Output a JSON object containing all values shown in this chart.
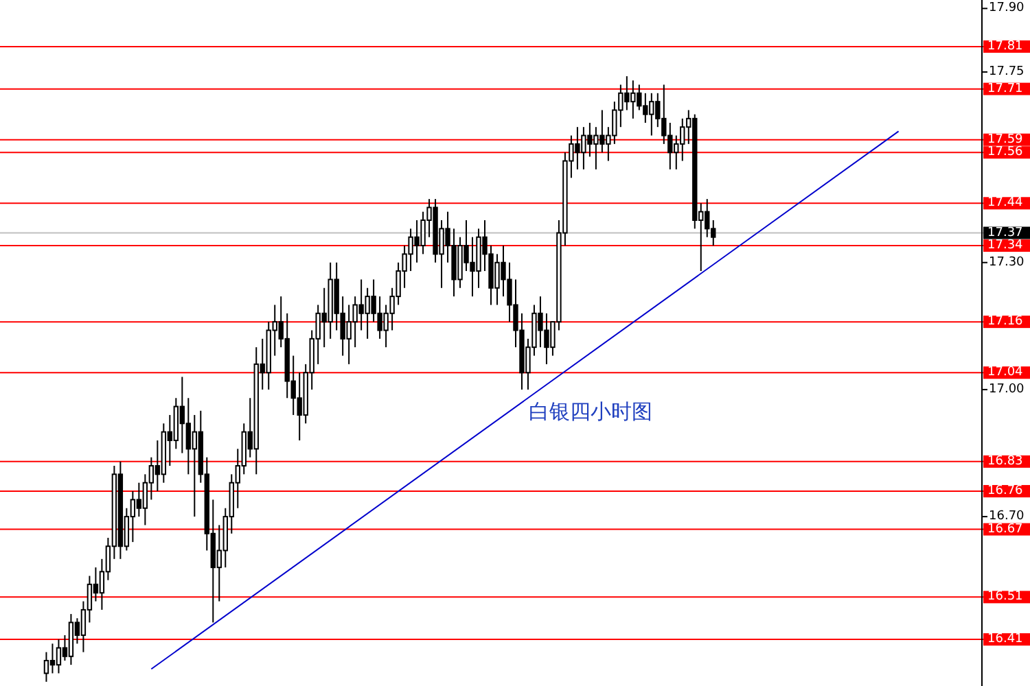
{
  "chart_data": {
    "type": "candlestick",
    "title": "白银四小时图",
    "categories": [
      null,
      null,
      null,
      null,
      null,
      null,
      null,
      null,
      null,
      null,
      null,
      null,
      null,
      null,
      null,
      null,
      null,
      null,
      null,
      null,
      null,
      null,
      null,
      null,
      null,
      null,
      null,
      null,
      null,
      null,
      null,
      null,
      null,
      null,
      null,
      null,
      null,
      null,
      null,
      null,
      null,
      null,
      null,
      null,
      null,
      null,
      null,
      null,
      null,
      null,
      null,
      null,
      null,
      null,
      null,
      null,
      null,
      null,
      null,
      null,
      null,
      null,
      null,
      null,
      null,
      null,
      null,
      null,
      null,
      null,
      null,
      null,
      null,
      null,
      null,
      null,
      null,
      null,
      null,
      null,
      null,
      null,
      null,
      null,
      null,
      null,
      null,
      null,
      null,
      null,
      null,
      null,
      null,
      null,
      null,
      null,
      null,
      null,
      null,
      null,
      null,
      null,
      null,
      null,
      null,
      null,
      null,
      null,
      null,
      null,
      null,
      null,
      null,
      null,
      null,
      null,
      null,
      null,
      null,
      null,
      null,
      null,
      null,
      null,
      null,
      null,
      null,
      null,
      null,
      null,
      null,
      null,
      null,
      null,
      null,
      null,
      null,
      null,
      null,
      null,
      null,
      null,
      null,
      null,
      null,
      null,
      null,
      null,
      null,
      null,
      null,
      null,
      null,
      null,
      null,
      null,
      null,
      null,
      null
    ],
    "ohlc": [
      null,
      null,
      null,
      null,
      null,
      null,
      null,
      [
        16.33,
        16.38,
        16.31,
        16.36
      ],
      [
        16.36,
        16.4,
        16.33,
        16.35
      ],
      [
        16.35,
        16.41,
        16.33,
        16.39
      ],
      [
        16.39,
        16.42,
        16.36,
        16.37
      ],
      [
        16.37,
        16.47,
        16.35,
        16.45
      ],
      [
        16.45,
        16.46,
        16.4,
        16.42
      ],
      [
        16.42,
        16.5,
        16.38,
        16.48
      ],
      [
        16.48,
        16.56,
        16.45,
        16.54
      ],
      [
        16.54,
        16.58,
        16.5,
        16.52
      ],
      [
        16.52,
        16.6,
        16.48,
        16.57
      ],
      [
        16.57,
        16.65,
        16.55,
        16.63
      ],
      [
        16.63,
        16.82,
        16.6,
        16.8
      ],
      [
        16.8,
        16.83,
        16.6,
        16.63
      ],
      [
        16.63,
        16.72,
        16.62,
        16.7
      ],
      [
        16.7,
        16.76,
        16.64,
        16.74
      ],
      [
        16.74,
        16.78,
        16.7,
        16.72
      ],
      [
        16.72,
        16.8,
        16.68,
        16.78
      ],
      [
        16.78,
        16.84,
        16.74,
        16.82
      ],
      [
        16.82,
        16.88,
        16.76,
        16.8
      ],
      [
        16.8,
        16.92,
        16.78,
        16.9
      ],
      [
        16.9,
        16.94,
        16.82,
        16.88
      ],
      [
        16.88,
        16.98,
        16.86,
        16.96
      ],
      [
        16.96,
        17.03,
        16.85,
        16.92
      ],
      [
        16.92,
        16.98,
        16.8,
        16.86
      ],
      [
        16.86,
        16.94,
        16.7,
        16.9
      ],
      [
        16.9,
        16.95,
        16.78,
        16.8
      ],
      [
        16.8,
        16.84,
        16.62,
        16.66
      ],
      [
        16.66,
        16.74,
        16.45,
        16.58
      ],
      [
        16.58,
        16.68,
        16.5,
        16.62
      ],
      [
        16.62,
        16.72,
        16.58,
        16.7
      ],
      [
        16.7,
        16.8,
        16.66,
        16.78
      ],
      [
        16.78,
        16.86,
        16.72,
        16.82
      ],
      [
        16.82,
        16.92,
        16.8,
        16.9
      ],
      [
        16.9,
        16.98,
        16.84,
        16.86
      ],
      [
        16.86,
        17.1,
        16.8,
        17.06
      ],
      [
        17.06,
        17.12,
        17.0,
        17.04
      ],
      [
        17.04,
        17.16,
        17.0,
        17.14
      ],
      [
        17.14,
        17.2,
        17.08,
        17.16
      ],
      [
        17.16,
        17.22,
        17.1,
        17.12
      ],
      [
        17.12,
        17.18,
        16.98,
        17.02
      ],
      [
        17.02,
        17.08,
        16.94,
        16.98
      ],
      [
        16.98,
        17.04,
        16.88,
        16.94
      ],
      [
        16.94,
        17.06,
        16.92,
        17.04
      ],
      [
        17.04,
        17.14,
        17.0,
        17.12
      ],
      [
        17.12,
        17.2,
        17.06,
        17.18
      ],
      [
        17.18,
        17.24,
        17.1,
        17.16
      ],
      [
        17.16,
        17.3,
        17.12,
        17.26
      ],
      [
        17.26,
        17.3,
        17.14,
        17.18
      ],
      [
        17.18,
        17.22,
        17.08,
        17.12
      ],
      [
        17.12,
        17.2,
        17.06,
        17.16
      ],
      [
        17.16,
        17.22,
        17.1,
        17.2
      ],
      [
        17.2,
        17.26,
        17.14,
        17.18
      ],
      [
        17.18,
        17.24,
        17.12,
        17.22
      ],
      [
        17.22,
        17.26,
        17.16,
        17.18
      ],
      [
        17.18,
        17.22,
        17.12,
        17.14
      ],
      [
        17.14,
        17.2,
        17.1,
        17.18
      ],
      [
        17.18,
        17.24,
        17.14,
        17.22
      ],
      [
        17.22,
        17.3,
        17.2,
        17.28
      ],
      [
        17.28,
        17.34,
        17.24,
        17.32
      ],
      [
        17.32,
        17.38,
        17.28,
        17.36
      ],
      [
        17.36,
        17.4,
        17.3,
        17.34
      ],
      [
        17.34,
        17.42,
        17.32,
        17.4
      ],
      [
        17.4,
        17.45,
        17.36,
        17.43
      ],
      [
        17.43,
        17.45,
        17.3,
        17.32
      ],
      [
        17.32,
        17.4,
        17.24,
        17.38
      ],
      [
        17.38,
        17.42,
        17.3,
        17.34
      ],
      [
        17.34,
        17.38,
        17.22,
        17.26
      ],
      [
        17.26,
        17.36,
        17.24,
        17.34
      ],
      [
        17.34,
        17.4,
        17.28,
        17.3
      ],
      [
        17.3,
        17.36,
        17.22,
        17.28
      ],
      [
        17.28,
        17.38,
        17.24,
        17.36
      ],
      [
        17.36,
        17.4,
        17.28,
        17.32
      ],
      [
        17.32,
        17.34,
        17.2,
        17.24
      ],
      [
        17.24,
        17.32,
        17.2,
        17.3
      ],
      [
        17.3,
        17.34,
        17.22,
        17.26
      ],
      [
        17.26,
        17.3,
        17.16,
        17.2
      ],
      [
        17.2,
        17.26,
        17.1,
        17.14
      ],
      [
        17.14,
        17.18,
        17.0,
        17.04
      ],
      [
        17.04,
        17.12,
        17.0,
        17.1
      ],
      [
        17.1,
        17.2,
        17.08,
        17.18
      ],
      [
        17.18,
        17.22,
        17.1,
        17.14
      ],
      [
        17.14,
        17.18,
        17.06,
        17.1
      ],
      [
        17.1,
        17.16,
        17.08,
        17.16
      ],
      [
        17.16,
        17.4,
        17.14,
        17.37
      ],
      [
        17.37,
        17.56,
        17.34,
        17.54
      ],
      [
        17.54,
        17.6,
        17.5,
        17.58
      ],
      [
        17.58,
        17.62,
        17.52,
        17.56
      ],
      [
        17.56,
        17.62,
        17.52,
        17.6
      ],
      [
        17.6,
        17.63,
        17.55,
        17.58
      ],
      [
        17.58,
        17.62,
        17.52,
        17.6
      ],
      [
        17.6,
        17.66,
        17.56,
        17.58
      ],
      [
        17.58,
        17.62,
        17.54,
        17.6
      ],
      [
        17.6,
        17.68,
        17.58,
        17.66
      ],
      [
        17.66,
        17.72,
        17.62,
        17.7
      ],
      [
        17.7,
        17.74,
        17.66,
        17.68
      ],
      [
        17.68,
        17.73,
        17.64,
        17.7
      ],
      [
        17.7,
        17.72,
        17.66,
        17.67
      ],
      [
        17.67,
        17.7,
        17.63,
        17.65
      ],
      [
        17.65,
        17.7,
        17.6,
        17.68
      ],
      [
        17.68,
        17.7,
        17.62,
        17.64
      ],
      [
        17.64,
        17.72,
        17.58,
        17.6
      ],
      [
        17.6,
        17.63,
        17.52,
        17.56
      ],
      [
        17.56,
        17.6,
        17.52,
        17.58
      ],
      [
        17.58,
        17.64,
        17.54,
        17.62
      ],
      [
        17.62,
        17.66,
        17.58,
        17.64
      ],
      [
        17.64,
        17.65,
        17.38,
        17.4
      ],
      [
        17.4,
        17.44,
        17.28,
        17.42
      ],
      [
        17.42,
        17.45,
        17.36,
        17.38
      ],
      [
        17.38,
        17.4,
        17.34,
        17.36
      ],
      null,
      null,
      null,
      null,
      null,
      null,
      null,
      null,
      null,
      null,
      null,
      null,
      null,
      null,
      null,
      null,
      null,
      null,
      null,
      null,
      null,
      null,
      null,
      null,
      null,
      null,
      null,
      null,
      null,
      null,
      null,
      null,
      null,
      null,
      null,
      null,
      null,
      null,
      null,
      null,
      null,
      null,
      null
    ],
    "series": [
      {
        "type": "line",
        "color": "#0000cc",
        "values": [
          null,
          null,
          null,
          null,
          null,
          null,
          null,
          null,
          null,
          null,
          null,
          null,
          null,
          null,
          null,
          null,
          null,
          null,
          null,
          null,
          null,
          null,
          null,
          null,
          16.34,
          null,
          null,
          null,
          null,
          null,
          null,
          null,
          null,
          null,
          null,
          null,
          null,
          null,
          null,
          null,
          null,
          null,
          null,
          null,
          null,
          null,
          null,
          null,
          null,
          null,
          null,
          null,
          null,
          null,
          null,
          null,
          null,
          null,
          null,
          null,
          null,
          null,
          null,
          null,
          null,
          null,
          null,
          null,
          null,
          null,
          null,
          null,
          null,
          null,
          null,
          null,
          null,
          null,
          null,
          null,
          null,
          null,
          null,
          null,
          null,
          null,
          null,
          null,
          null,
          null,
          null,
          null,
          null,
          null,
          null,
          null,
          null,
          null,
          null,
          null,
          null,
          null,
          null,
          null,
          null,
          null,
          null,
          null,
          null,
          null,
          null,
          null,
          null,
          null,
          null,
          null,
          null,
          null,
          null,
          null,
          null,
          null,
          null,
          null,
          null,
          null,
          null,
          null,
          null,
          null,
          null,
          null,
          null,
          null,
          null,
          null,
          null,
          null,
          null,
          null,
          null,
          null,
          null,
          null,
          null,
          17.61,
          null,
          null,
          null,
          null,
          null,
          null,
          null,
          null,
          null,
          null,
          null,
          null,
          null
        ]
      }
    ],
    "ylim": [
      16.3,
      17.92
    ],
    "yticks": [
      {
        "value": 17.9,
        "label": "17.90"
      },
      17.75,
      {
        "value": 17.3,
        "label": "17.30"
      },
      {
        "value": 17,
        "label": "17.00"
      },
      {
        "value": 16.7,
        "label": "16.70"
      }
    ],
    "tick_labels": "y",
    "grid": false,
    "ref_lines": [
      {
        "axis": "y",
        "value": 17.81,
        "label": "17.81",
        "color": "#ff0000"
      },
      {
        "axis": "y",
        "value": 17.71,
        "label": "17.71",
        "color": "#ff0000"
      },
      {
        "axis": "y",
        "value": 17.59,
        "label": "17.59",
        "color": "#ff0000"
      },
      {
        "axis": "y",
        "value": 17.56,
        "label": "17.56",
        "color": "#ff0000"
      },
      {
        "axis": "y",
        "value": 17.44,
        "label": "17.44",
        "color": "#ff0000"
      },
      {
        "axis": "y",
        "value": 17.37,
        "label": "17.37",
        "color": "#c0c0c0"
      },
      {
        "axis": "y",
        "value": 17.34,
        "label": "17.34",
        "color": "#ff0000"
      },
      {
        "axis": "y",
        "value": 17.16,
        "label": "17.16",
        "color": "#ff0000"
      },
      {
        "axis": "y",
        "value": 17.04,
        "label": "17.04",
        "color": "#ff0000"
      },
      {
        "axis": "y",
        "value": 16.83,
        "label": "16.83",
        "color": "#ff0000"
      },
      {
        "axis": "y",
        "value": 16.76,
        "label": "16.76",
        "color": "#ff0000"
      },
      {
        "axis": "y",
        "value": 16.67,
        "label": "16.67",
        "color": "#ff0000"
      },
      {
        "axis": "y",
        "value": 16.51,
        "label": "16.51",
        "color": "#ff0000"
      },
      {
        "axis": "y",
        "value": 16.41,
        "label": "16.41",
        "color": "#ff0000"
      }
    ]
  }
}
